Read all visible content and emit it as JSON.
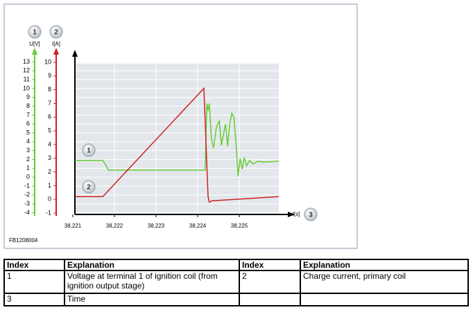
{
  "chart_data": {
    "type": "line",
    "figure_id": "FB1208004",
    "ylabel": "U[V]",
    "y2label": "I[A]",
    "xlabel": "t[s]",
    "xlabel_callout": "3",
    "xlim": [
      38.22105,
      38.22595
    ],
    "xticks": [
      {
        "value": 38.221,
        "label": "38,221"
      },
      {
        "value": 38.222,
        "label": "38,222"
      },
      {
        "value": 38.223,
        "label": "38,223"
      },
      {
        "value": 38.224,
        "label": "38,224"
      },
      {
        "value": 38.225,
        "label": "38,225"
      }
    ],
    "ylim": [
      -4.2,
      12.8
    ],
    "yticks": [
      -4,
      -3,
      -2,
      -1,
      0,
      1,
      2,
      3,
      4,
      5,
      6,
      7,
      8,
      9,
      10,
      11,
      12,
      13
    ],
    "y2lim": [
      -1.1,
      9.9
    ],
    "y2ticks": [
      -1,
      0,
      1,
      2,
      3,
      4,
      5,
      6,
      7,
      8,
      9,
      10
    ],
    "grid": true,
    "series": [
      {
        "name": "1",
        "color": "#66cc33",
        "axis": "y",
        "x": [
          38.22105,
          38.22172,
          38.2218,
          38.22185,
          38.22418,
          38.22422,
          38.22425,
          38.22428,
          38.22433,
          38.22438,
          38.22445,
          38.22452,
          38.22457,
          38.22462,
          38.22467,
          38.22472,
          38.22477,
          38.22482,
          38.22487,
          38.22492,
          38.22497,
          38.22502,
          38.22507,
          38.22512,
          38.22518,
          38.22525,
          38.22533,
          38.22545,
          38.22558,
          38.22595
        ],
        "values": [
          1.9,
          1.9,
          1.3,
          0.8,
          0.8,
          8.3,
          7.5,
          8.3,
          4.4,
          3.3,
          5.6,
          6.4,
          3.6,
          4.8,
          6.0,
          3.5,
          6.0,
          7.2,
          6.8,
          4.0,
          0.1,
          2.1,
          0.9,
          2.2,
          1.3,
          1.9,
          1.5,
          1.8,
          1.7,
          1.8
        ]
      },
      {
        "name": "2",
        "color": "#cc2020",
        "axis": "y2",
        "x": [
          38.22105,
          38.22172,
          38.22415,
          38.22425,
          38.22428,
          38.22435,
          38.22595
        ],
        "values": [
          0.2,
          0.2,
          8.1,
          0.2,
          -0.2,
          -0.1,
          0.2
        ]
      }
    ]
  },
  "table": {
    "header": [
      "Index",
      "Explanation",
      "Index",
      "Explanation"
    ],
    "rows": [
      [
        "1",
        "Voltage at terminal 1 of ignition coil (from ignition output stage)",
        "2",
        "Charge current, primary coil"
      ],
      [
        "3",
        "Time"
      ]
    ]
  }
}
